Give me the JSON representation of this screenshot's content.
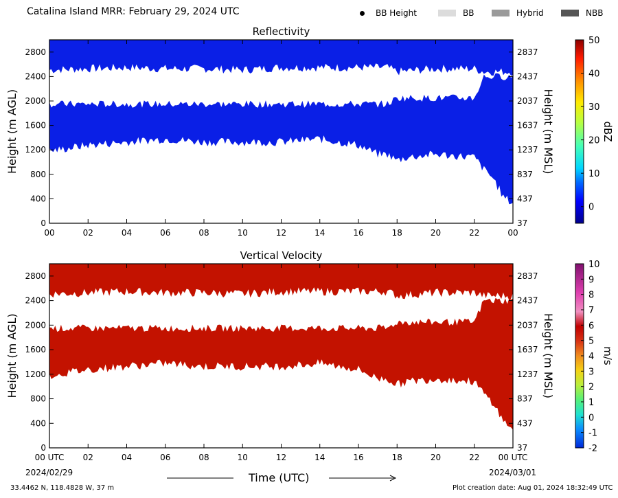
{
  "header": {
    "title": "Catalina Island MRR:  February 29, 2024 UTC"
  },
  "legend": {
    "items": [
      {
        "label": "BB Height",
        "kind": "dot",
        "color": "#000000"
      },
      {
        "label": "BB",
        "kind": "swatch",
        "color": "#dcdcdc"
      },
      {
        "label": "Hybrid",
        "kind": "swatch",
        "color": "#9a9a9a"
      },
      {
        "label": "NBB",
        "kind": "swatch",
        "color": "#555555"
      }
    ]
  },
  "footer": {
    "coords": "33.4462 N, 118.4828 W, 37 m",
    "creation": "Plot creation date: Aug 01, 2024 18:32:49 UTC",
    "start_date": "2024/02/29",
    "end_date": "2024/03/01",
    "xlabel": "Time (UTC)"
  },
  "chart_data": [
    {
      "type": "heatmap",
      "title": "Reflectivity",
      "ylabel": "Height (m AGL)",
      "ylabel_right": "Height (m MSL)",
      "xlim": [
        0,
        24
      ],
      "ylim": [
        0,
        3000
      ],
      "x_ticks": [
        "00",
        "02",
        "04",
        "06",
        "08",
        "10",
        "12",
        "14",
        "16",
        "18",
        "20",
        "22",
        "00"
      ],
      "y_ticks": [
        0,
        400,
        800,
        1200,
        1600,
        2000,
        2400,
        2800
      ],
      "y_ticks_right": [
        "37",
        "437",
        "837",
        "1237",
        "1637",
        "2037",
        "2437",
        "2837"
      ],
      "colorbar": {
        "label": "dBZ",
        "min": -5,
        "max": 50,
        "ticks": [
          "0",
          "10",
          "20",
          "30",
          "40",
          "50"
        ]
      },
      "field_color": "#0a1fe6",
      "layers": [
        {
          "name": "upper",
          "hours": [
            0,
            2,
            4,
            6,
            8,
            10,
            12,
            14,
            16,
            17.5,
            18,
            20,
            22,
            22.5,
            23,
            23.5,
            24
          ],
          "top": [
            3000,
            3000,
            3000,
            3000,
            3000,
            3000,
            3000,
            3000,
            3000,
            3000,
            3000,
            3000,
            3000,
            3000,
            3000,
            3000,
            3000
          ],
          "base": [
            2480,
            2500,
            2520,
            2500,
            2500,
            2480,
            2520,
            2520,
            2520,
            2520,
            2450,
            2500,
            2500,
            2450,
            2450,
            2450,
            2450
          ]
        },
        {
          "name": "lower",
          "hours": [
            0,
            2,
            4,
            6,
            8,
            10,
            12,
            14,
            16,
            17,
            17.5,
            18,
            18.5,
            20,
            22,
            22.5,
            23,
            23.5,
            24
          ],
          "top": [
            1950,
            1950,
            1950,
            1950,
            1950,
            1950,
            1950,
            1950,
            1950,
            1950,
            1950,
            2050,
            2050,
            2050,
            2050,
            2400,
            2400,
            2400,
            2400
          ],
          "base": [
            1150,
            1250,
            1300,
            1350,
            1300,
            1300,
            1300,
            1350,
            1250,
            1100,
            1100,
            1000,
            1050,
            1100,
            1050,
            850,
            700,
            400,
            300
          ]
        }
      ]
    },
    {
      "type": "heatmap",
      "title": "Vertical Velocity",
      "ylabel": "Height (m AGL)",
      "ylabel_right": "Height (m MSL)",
      "xlim": [
        0,
        24
      ],
      "ylim": [
        0,
        3000
      ],
      "x_ticks": [
        "00 UTC",
        "02",
        "04",
        "06",
        "08",
        "10",
        "12",
        "14",
        "16",
        "18",
        "20",
        "22",
        "00 UTC"
      ],
      "y_ticks": [
        0,
        400,
        800,
        1200,
        1600,
        2000,
        2400,
        2800
      ],
      "y_ticks_right": [
        "37",
        "437",
        "837",
        "1237",
        "1637",
        "2037",
        "2437",
        "2837"
      ],
      "colorbar": {
        "label": "m/s",
        "min": -2,
        "max": 10,
        "ticks": [
          "-2",
          "-1",
          "0",
          "1",
          "2",
          "3",
          "4",
          "5",
          "6",
          "7",
          "8",
          "9",
          "10"
        ]
      },
      "field_color": "#c31200",
      "layers": [
        {
          "name": "upper",
          "hours": [
            0,
            2,
            4,
            6,
            8,
            10,
            12,
            14,
            16,
            17.5,
            18,
            20,
            22,
            22.5,
            23,
            23.5,
            24
          ],
          "top": [
            3000,
            3000,
            3000,
            3000,
            3000,
            3000,
            3000,
            3000,
            3000,
            3000,
            3000,
            3000,
            3000,
            3000,
            3000,
            3000,
            3000
          ],
          "base": [
            2480,
            2500,
            2520,
            2500,
            2500,
            2480,
            2520,
            2520,
            2520,
            2520,
            2450,
            2500,
            2500,
            2450,
            2450,
            2450,
            2450
          ]
        },
        {
          "name": "lower",
          "hours": [
            0,
            2,
            4,
            6,
            8,
            10,
            12,
            14,
            16,
            17,
            17.5,
            18,
            18.5,
            20,
            22,
            22.5,
            23,
            23.5,
            24
          ],
          "top": [
            1950,
            1950,
            1950,
            1950,
            1950,
            1950,
            1950,
            1950,
            1950,
            1950,
            1950,
            2050,
            2050,
            2050,
            2050,
            2400,
            2400,
            2400,
            2400
          ],
          "base": [
            1150,
            1250,
            1300,
            1350,
            1300,
            1300,
            1300,
            1350,
            1250,
            1100,
            1100,
            1000,
            1050,
            1100,
            1050,
            850,
            700,
            400,
            300
          ]
        }
      ]
    }
  ]
}
